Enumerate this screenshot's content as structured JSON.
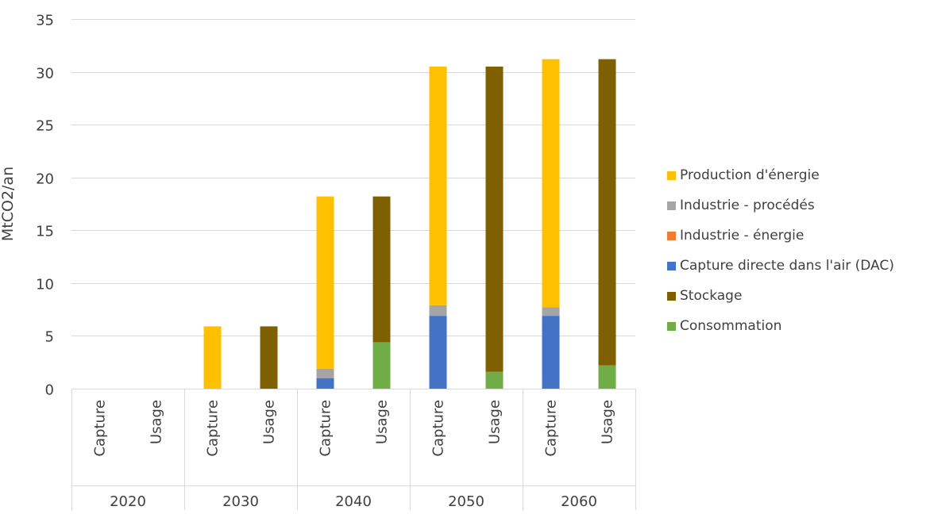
{
  "chart_data": {
    "type": "bar",
    "stacked": true,
    "ylabel": "MtCO2/an",
    "ylim": [
      0,
      35
    ],
    "yticks": [
      0,
      5,
      10,
      15,
      20,
      25,
      30,
      35
    ],
    "grid": true,
    "legend_position": "right",
    "groups": [
      {
        "label": "2020",
        "bars": [
          {
            "label": "Capture",
            "segments": []
          },
          {
            "label": "Usage",
            "segments": []
          }
        ]
      },
      {
        "label": "2030",
        "bars": [
          {
            "label": "Capture",
            "segments": [
              {
                "series": "Production d'énergie",
                "value": 5.9
              }
            ]
          },
          {
            "label": "Usage",
            "segments": [
              {
                "series": "Stockage",
                "value": 5.9
              }
            ]
          }
        ]
      },
      {
        "label": "2040",
        "bars": [
          {
            "label": "Capture",
            "segments": [
              {
                "series": "Capture directe dans l'air (DAC)",
                "value": 1.0
              },
              {
                "series": "Industrie - procédés",
                "value": 0.9
              },
              {
                "series": "Production d'énergie",
                "value": 16.3
              }
            ]
          },
          {
            "label": "Usage",
            "segments": [
              {
                "series": "Consommation",
                "value": 4.4
              },
              {
                "series": "Stockage",
                "value": 13.8
              }
            ]
          }
        ]
      },
      {
        "label": "2050",
        "bars": [
          {
            "label": "Capture",
            "segments": [
              {
                "series": "Capture directe dans l'air (DAC)",
                "value": 6.9
              },
              {
                "series": "Industrie - procédés",
                "value": 1.0
              },
              {
                "series": "Production d'énergie",
                "value": 22.6
              }
            ]
          },
          {
            "label": "Usage",
            "segments": [
              {
                "series": "Consommation",
                "value": 1.6
              },
              {
                "series": "Stockage",
                "value": 28.9
              }
            ]
          }
        ]
      },
      {
        "label": "2060",
        "bars": [
          {
            "label": "Capture",
            "segments": [
              {
                "series": "Capture directe dans l'air (DAC)",
                "value": 6.9
              },
              {
                "series": "Industrie - procédés",
                "value": 0.8
              },
              {
                "series": "Production d'énergie",
                "value": 23.5
              }
            ]
          },
          {
            "label": "Usage",
            "segments": [
              {
                "series": "Consommation",
                "value": 2.2
              },
              {
                "series": "Stockage",
                "value": 29.0
              }
            ]
          }
        ]
      }
    ],
    "series": [
      {
        "name": "Production d'énergie",
        "color": "#FFC000"
      },
      {
        "name": "Industrie - procédés",
        "color": "#A5A5A5"
      },
      {
        "name": "Industrie - énergie",
        "color": "#ED7D31"
      },
      {
        "name": "Capture directe dans l'air (DAC)",
        "color": "#4472C4"
      },
      {
        "name": "Stockage",
        "color": "#7F6000"
      },
      {
        "name": "Consommation",
        "color": "#70AD47"
      }
    ]
  }
}
